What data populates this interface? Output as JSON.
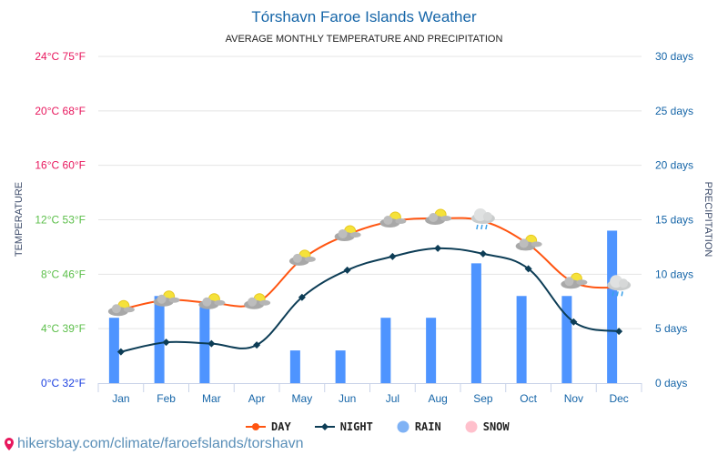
{
  "footer": {
    "url": "hikersbay.com/climate/faroefslands/torshavn",
    "icon": "pin-icon"
  },
  "chart_data": {
    "type": "line+bar",
    "title": "Tórshavn Faroe Islands Weather",
    "subtitle": "AVERAGE MONTHLY TEMPERATURE AND PRECIPITATION",
    "ylabel_left": "TEMPERATURE",
    "ylabel_right": "PRECIPITATION",
    "categories": [
      "Jan",
      "Feb",
      "Mar",
      "Apr",
      "May",
      "Jun",
      "Jul",
      "Aug",
      "Sep",
      "Oct",
      "Nov",
      "Dec"
    ],
    "y_left": {
      "range": [
        0,
        24
      ],
      "ticks": [
        "0°C 32°F",
        "4°C 39°F",
        "8°C 46°F",
        "12°C 53°F",
        "16°C 60°F",
        "20°C 68°F",
        "24°C 75°F"
      ],
      "tick_colors": [
        "#1a3fe0",
        "#5cbf4a",
        "#5cbf4a",
        "#5cbf4a",
        "#e8175d",
        "#e8175d",
        "#e8175d"
      ]
    },
    "y_right": {
      "range": [
        0,
        30
      ],
      "ticks": [
        "0 days",
        "5 days",
        "10 days",
        "15 days",
        "20 days",
        "25 days",
        "30 days"
      ]
    },
    "grid": true,
    "legend_position": "bottom",
    "series": [
      {
        "name": "DAY",
        "type": "line",
        "color": "#ff5511",
        "values": [
          5.4,
          6.1,
          5.9,
          5.9,
          9.1,
          10.9,
          11.9,
          12.1,
          11.9,
          10.2,
          7.4,
          7.0
        ]
      },
      {
        "name": "NIGHT",
        "type": "line",
        "color": "#0d3d56",
        "values": [
          2.3,
          3.0,
          2.9,
          2.8,
          6.3,
          8.3,
          9.3,
          9.9,
          9.5,
          8.4,
          4.5,
          3.8
        ]
      },
      {
        "name": "RAIN",
        "type": "bar",
        "color": "#4e94ff",
        "values": [
          6,
          8,
          7,
          0,
          3,
          3,
          6,
          6,
          11,
          8,
          8,
          14
        ]
      },
      {
        "name": "SNOW",
        "type": "bar",
        "color": "#ffb6c8",
        "values": [
          0,
          0,
          0,
          0,
          0,
          0,
          0,
          0,
          0,
          0,
          0,
          0
        ]
      }
    ],
    "weather_icons": [
      "partly-cloudy",
      "partly-cloudy",
      "partly-cloudy",
      "partly-cloudy",
      "partly-cloudy",
      "partly-cloudy",
      "partly-cloudy",
      "partly-cloudy",
      "rain-cloud",
      "partly-cloudy",
      "partly-cloudy",
      "rain-cloud"
    ]
  }
}
